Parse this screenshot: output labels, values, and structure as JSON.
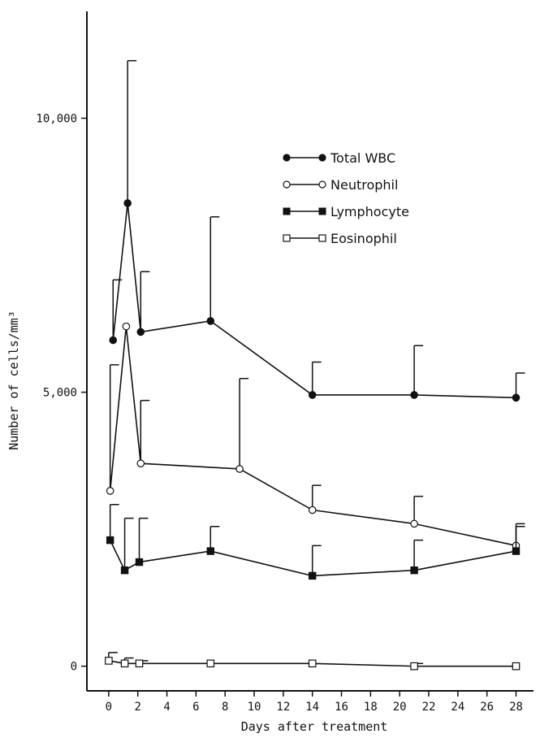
{
  "chart_data": {
    "type": "line",
    "xlabel": "Days after treatment",
    "ylabel": "Number of cells/mm³",
    "xlim": [
      -1.5,
      29.2
    ],
    "ylim": [
      -450,
      11950
    ],
    "x_ticks": [
      0,
      2,
      4,
      6,
      8,
      10,
      12,
      14,
      16,
      18,
      20,
      22,
      24,
      26,
      28
    ],
    "y_ticks": [
      0,
      5000,
      10000
    ],
    "y_tick_labels": [
      "0",
      "5,000",
      "10,000"
    ],
    "grid": false,
    "legend_position": "upper-right",
    "error_bars": "one-sided upper",
    "series": [
      {
        "name": "Total WBC",
        "marker": "filled-circle",
        "points": [
          {
            "x": 0.3,
            "y": 5950,
            "err": 1100
          },
          {
            "x": 1.3,
            "y": 8450,
            "err": 2600
          },
          {
            "x": 2.2,
            "y": 6100,
            "err": 1100
          },
          {
            "x": 7,
            "y": 6300,
            "err": 1900
          },
          {
            "x": 14,
            "y": 4950,
            "err": 600
          },
          {
            "x": 21,
            "y": 4950,
            "err": 900
          },
          {
            "x": 28,
            "y": 4900,
            "err": 450
          }
        ]
      },
      {
        "name": "Neutrophil",
        "marker": "open-circle",
        "points": [
          {
            "x": 0.1,
            "y": 3200,
            "err": 2300
          },
          {
            "x": 1.2,
            "y": 6200,
            "err": 0
          },
          {
            "x": 2.2,
            "y": 3700,
            "err": 1150
          },
          {
            "x": 9,
            "y": 3600,
            "err": 1650
          },
          {
            "x": 14,
            "y": 2850,
            "err": 450
          },
          {
            "x": 21,
            "y": 2600,
            "err": 500
          },
          {
            "x": 28,
            "y": 2200,
            "err": 400
          }
        ]
      },
      {
        "name": "Lymphocyte",
        "marker": "filled-square",
        "points": [
          {
            "x": 0.1,
            "y": 2300,
            "err": 650
          },
          {
            "x": 1.1,
            "y": 1750,
            "err": 950
          },
          {
            "x": 2.1,
            "y": 1900,
            "err": 800
          },
          {
            "x": 7,
            "y": 2100,
            "err": 450
          },
          {
            "x": 14,
            "y": 1650,
            "err": 550
          },
          {
            "x": 21,
            "y": 1750,
            "err": 550
          },
          {
            "x": 28,
            "y": 2100,
            "err": 450
          }
        ]
      },
      {
        "name": "Eosinophil",
        "marker": "open-square",
        "points": [
          {
            "x": 0,
            "y": 100,
            "err": 150
          },
          {
            "x": 1.1,
            "y": 50,
            "err": 100
          },
          {
            "x": 2.1,
            "y": 50,
            "err": 50
          },
          {
            "x": 7,
            "y": 50,
            "err": 0
          },
          {
            "x": 14,
            "y": 50,
            "err": 0
          },
          {
            "x": 21,
            "y": 0,
            "err": 50
          },
          {
            "x": 28,
            "y": 0,
            "err": 0
          }
        ]
      }
    ]
  }
}
